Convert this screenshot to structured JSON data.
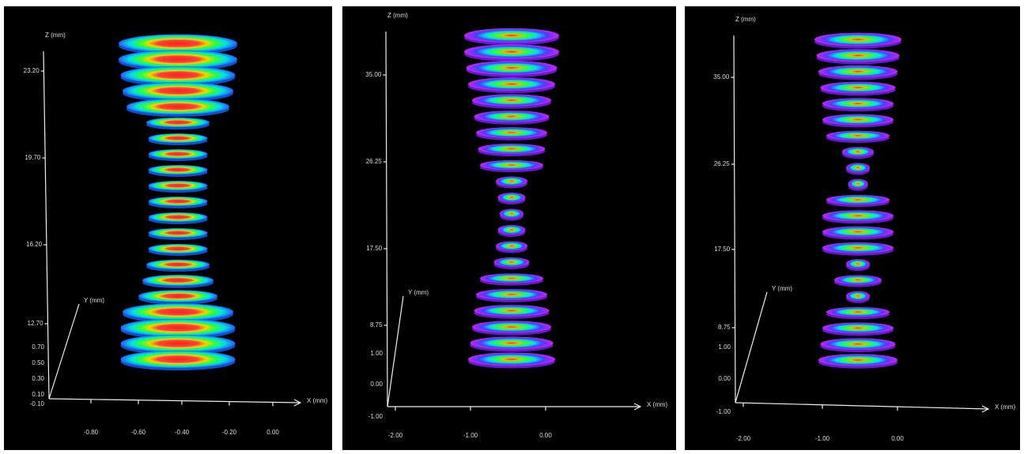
{
  "panels": [
    {
      "z_label": "Z (mm)",
      "y_label": "Y (mm)",
      "x_label": "X (mm)",
      "z_ticks": [
        "23.20",
        "19.70",
        "16.20",
        "12.70"
      ],
      "y_ticks": [
        "0.70",
        "0.50",
        "0.30",
        "0.10",
        "-0.10"
      ],
      "x_ticks": [
        "-0.80",
        "-0.60",
        "-0.40",
        "-0.20",
        "0.00"
      ]
    },
    {
      "z_label": "Z (mm)",
      "y_label": "Y (mm)",
      "x_label": "X (mm)",
      "z_ticks": [
        "35.00",
        "26.25",
        "17.50",
        "8.75"
      ],
      "y_ticks": [
        "1.00",
        "0.00",
        "-1.00"
      ],
      "x_ticks": [
        "-2.00",
        "-1.00",
        "0.00"
      ]
    },
    {
      "z_label": "Z (mm)",
      "y_label": "Y (mm)",
      "x_label": "X (mm)",
      "z_ticks": [
        "35.00",
        "26.25",
        "17.50",
        "8.75"
      ],
      "y_ticks": [
        "1.00",
        "0.00",
        "-1.00"
      ],
      "x_ticks": [
        "-2.00",
        "-1.00",
        "0.00"
      ]
    }
  ]
}
